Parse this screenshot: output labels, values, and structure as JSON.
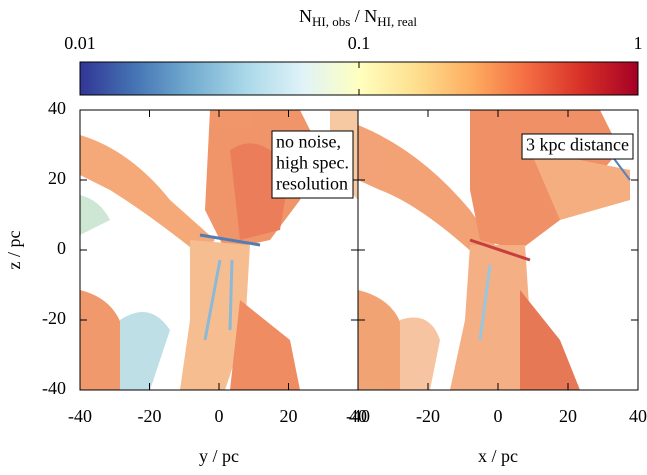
{
  "colorbar": {
    "numerator": {
      "base": "N",
      "sub": "HI, obs"
    },
    "separator": " / ",
    "denominator": {
      "base": "N",
      "sub": "HI, real"
    },
    "log_scale": true,
    "lim": [
      0.01,
      1
    ],
    "ticks": [
      0.01,
      0.1,
      1
    ],
    "colormap": [
      "#313695",
      "#4575b4",
      "#74add1",
      "#abd9e9",
      "#e0f3f8",
      "#ffffbf",
      "#fee090",
      "#fdae61",
      "#f46d43",
      "#d73027",
      "#a50026"
    ]
  },
  "chart_data": [
    {
      "type": "heatmap",
      "xlabel": "y / pc",
      "ylabel": "z / pc",
      "xlim": [
        -40,
        40
      ],
      "ylim": [
        -40,
        40
      ],
      "xticks": [
        -40,
        -20,
        0,
        20,
        40
      ],
      "yticks": [
        -40,
        -20,
        0,
        20,
        40
      ],
      "ytick_labels": true,
      "annotation": [
        "no noise,",
        "high spec.",
        "resolution"
      ]
    },
    {
      "type": "heatmap",
      "xlabel": "x / pc",
      "xlim": [
        -40,
        40
      ],
      "ylim": [
        -40,
        40
      ],
      "xticks": [
        -40,
        -20,
        0,
        20,
        40
      ],
      "yticks": [
        -40,
        -20,
        0,
        20,
        40
      ],
      "ytick_labels": false,
      "annotation": [
        "3 kpc distance"
      ]
    }
  ]
}
